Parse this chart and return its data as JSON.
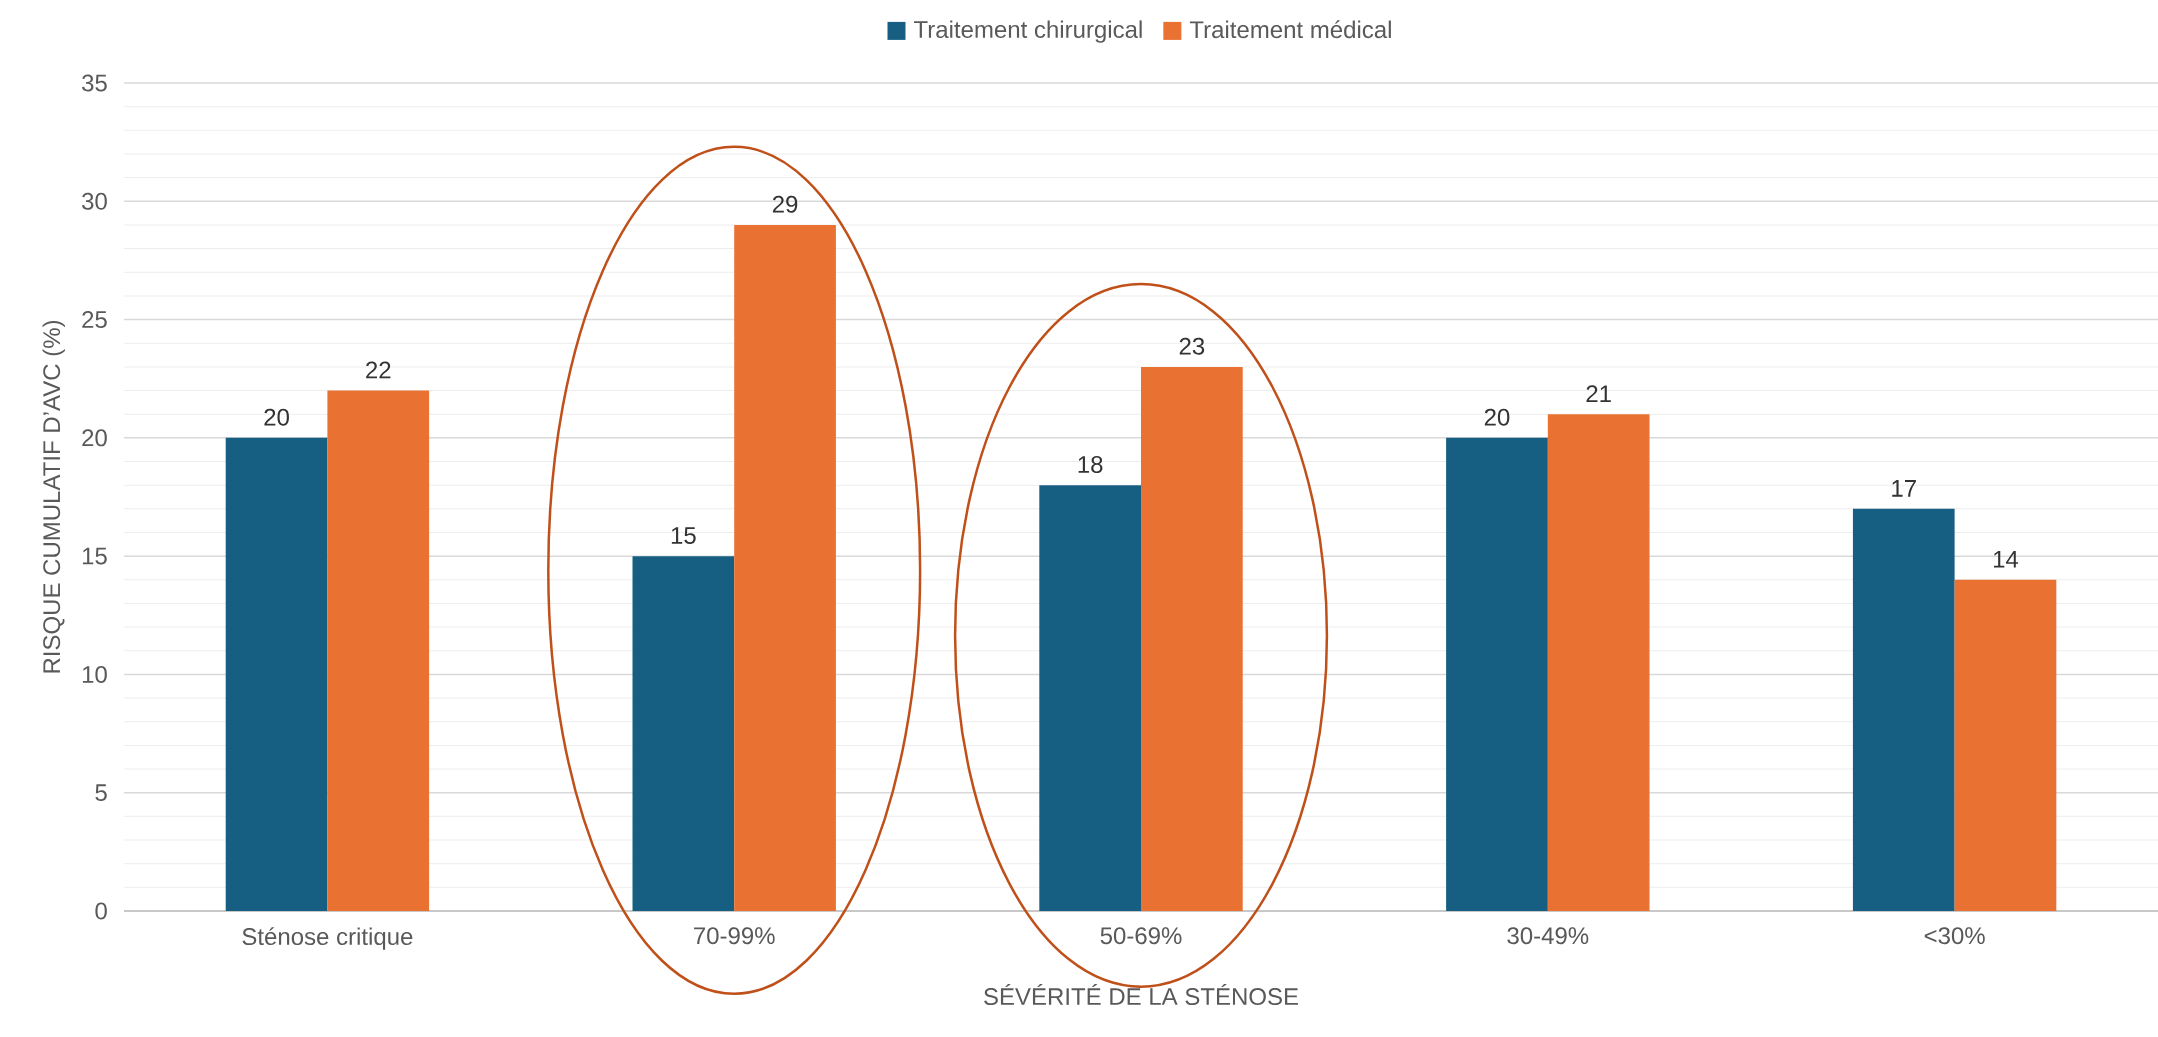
{
  "chart_data": {
    "type": "bar",
    "xlabel": "SÉVÉRITÉ DE LA STÉNOSE",
    "ylabel": "RISQUE CUMULATIF  D’AVC (%)",
    "categories": [
      "Sténose critique",
      "70-99%",
      "50-69%",
      "30-49%",
      "<30%"
    ],
    "series": [
      {
        "name": "Traitement chirurgical",
        "color": "#165f82",
        "values": [
          20,
          15,
          18,
          20,
          17
        ]
      },
      {
        "name": "Traitement médical",
        "color": "#e97132",
        "values": [
          22,
          29,
          23,
          21,
          14
        ]
      }
    ],
    "ylim": [
      0,
      35
    ],
    "yticks": [
      0,
      5,
      10,
      15,
      20,
      25,
      30,
      35
    ],
    "grid": "y",
    "legend": "top",
    "data_labels": true
  }
}
